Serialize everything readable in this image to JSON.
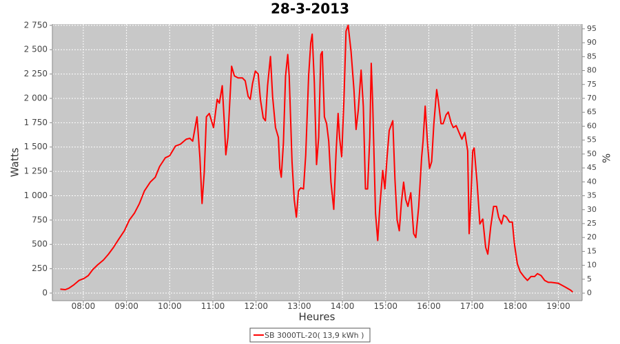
{
  "chart_data": {
    "type": "line",
    "title": "28-3-2013",
    "x_label": "Heures",
    "y_label": "Watts",
    "y2_label": "%",
    "x": [
      "07:28",
      "07:35",
      "07:40",
      "07:47",
      "07:54",
      "08:01",
      "08:07",
      "08:13",
      "08:20",
      "08:28",
      "08:35",
      "08:42",
      "08:49",
      "08:57",
      "09:04",
      "09:11",
      "09:18",
      "09:25",
      "09:33",
      "09:40",
      "09:46",
      "09:54",
      "10:00",
      "10:08",
      "10:15",
      "10:23",
      "10:28",
      "10:32",
      "10:38",
      "10:42",
      "10:45",
      "10:48",
      "10:51",
      "10:55",
      "11:01",
      "11:06",
      "11:09",
      "11:13",
      "11:16",
      "11:18",
      "11:21",
      "11:26",
      "11:30",
      "11:35",
      "11:41",
      "11:45",
      "11:49",
      "11:52",
      "11:55",
      "11:59",
      "12:03",
      "12:06",
      "12:10",
      "12:13",
      "12:16",
      "12:20",
      "12:23",
      "12:27",
      "12:31",
      "12:33",
      "12:35",
      "12:38",
      "12:41",
      "12:44",
      "12:46",
      "12:50",
      "12:53",
      "12:56",
      "12:59",
      "13:02",
      "13:06",
      "13:09",
      "13:13",
      "13:16",
      "13:18",
      "13:21",
      "13:24",
      "13:27",
      "13:30",
      "13:32",
      "13:35",
      "13:38",
      "13:41",
      "13:44",
      "13:48",
      "13:51",
      "13:54",
      "13:56",
      "13:59",
      "14:02",
      "14:05",
      "14:08",
      "14:12",
      "14:16",
      "14:19",
      "14:22",
      "14:26",
      "14:29",
      "14:32",
      "14:35",
      "14:38",
      "14:40",
      "14:42",
      "14:46",
      "14:49",
      "14:52",
      "14:56",
      "14:59",
      "15:02",
      "15:05",
      "15:10",
      "15:13",
      "15:16",
      "15:19",
      "15:22",
      "15:25",
      "15:28",
      "15:31",
      "15:35",
      "15:39",
      "15:42",
      "15:46",
      "15:50",
      "15:52",
      "15:55",
      "15:58",
      "16:01",
      "16:04",
      "16:07",
      "16:11",
      "16:13",
      "16:17",
      "16:20",
      "16:24",
      "16:27",
      "16:31",
      "16:34",
      "16:38",
      "16:42",
      "16:46",
      "16:50",
      "16:54",
      "16:56",
      "16:58",
      "17:01",
      "17:03",
      "17:07",
      "17:11",
      "17:15",
      "17:19",
      "17:22",
      "17:26",
      "17:30",
      "17:34",
      "17:37",
      "17:41",
      "17:44",
      "17:48",
      "17:52",
      "17:56",
      "17:59",
      "18:03",
      "18:07",
      "18:12",
      "18:17",
      "18:22",
      "18:27",
      "18:31",
      "18:36",
      "18:41",
      "18:46",
      "18:50",
      "19:00",
      "19:10",
      "19:17",
      "19:20"
    ],
    "series": [
      {
        "name": "SB 3000TL-20( 13,9 kWh )",
        "color": "#ff0000",
        "values": [
          40,
          35,
          50,
          85,
          130,
          150,
          180,
          240,
          290,
          340,
          400,
          470,
          550,
          640,
          750,
          820,
          920,
          1050,
          1140,
          1190,
          1300,
          1390,
          1410,
          1510,
          1530,
          1580,
          1590,
          1560,
          1810,
          1390,
          920,
          1240,
          1810,
          1845,
          1700,
          1990,
          1950,
          2130,
          1740,
          1420,
          1600,
          2330,
          2230,
          2210,
          2210,
          2180,
          2020,
          1990,
          2150,
          2280,
          2250,
          1990,
          1800,
          1770,
          2130,
          2430,
          2020,
          1700,
          1600,
          1280,
          1190,
          1540,
          2230,
          2450,
          2230,
          1350,
          960,
          780,
          1050,
          1080,
          1070,
          1420,
          2230,
          2570,
          2660,
          2160,
          1320,
          1600,
          2450,
          2480,
          1810,
          1740,
          1560,
          1140,
          860,
          1420,
          1845,
          1600,
          1400,
          1970,
          2690,
          2750,
          2480,
          2090,
          1680,
          1880,
          2290,
          1920,
          1070,
          1070,
          1600,
          2360,
          1950,
          820,
          540,
          890,
          1260,
          1070,
          1390,
          1670,
          1770,
          1170,
          750,
          640,
          930,
          1140,
          960,
          890,
          1030,
          610,
          570,
          890,
          1390,
          1560,
          1920,
          1560,
          1280,
          1350,
          1740,
          2090,
          1990,
          1740,
          1740,
          1830,
          1860,
          1750,
          1700,
          1720,
          1650,
          1580,
          1650,
          1460,
          610,
          890,
          1460,
          1490,
          1140,
          710,
          760,
          470,
          400,
          680,
          890,
          890,
          780,
          710,
          800,
          780,
          730,
          730,
          500,
          300,
          220,
          170,
          130,
          170,
          170,
          200,
          180,
          130,
          110,
          110,
          100,
          60,
          30,
          10
        ]
      }
    ],
    "xlim": [
      "07:17",
      "19:33"
    ],
    "xticks": [
      "08:00",
      "09:00",
      "10:00",
      "11:00",
      "12:00",
      "13:00",
      "14:00",
      "15:00",
      "16:00",
      "17:00",
      "18:00",
      "19:00"
    ],
    "ylim": [
      -78,
      2763
    ],
    "yticks": [
      0,
      250,
      500,
      750,
      {
        "value": 1000,
        "label": "1 000"
      },
      {
        "value": 1250,
        "label": "1 250"
      },
      {
        "value": 1500,
        "label": "1 500"
      },
      {
        "value": 1750,
        "label": "1 750"
      },
      {
        "value": 2000,
        "label": "2 000"
      },
      {
        "value": 2250,
        "label": "2 250"
      },
      {
        "value": 2500,
        "label": "2 500"
      },
      {
        "value": 2750,
        "label": "2 750"
      }
    ],
    "y2lim": [
      -2.7,
      96.7
    ],
    "y2ticks": [
      0,
      5,
      10,
      15,
      20,
      25,
      30,
      35,
      40,
      45,
      50,
      55,
      60,
      65,
      70,
      75,
      80,
      85,
      90,
      95
    ],
    "grid": true,
    "legend": "bottom"
  }
}
